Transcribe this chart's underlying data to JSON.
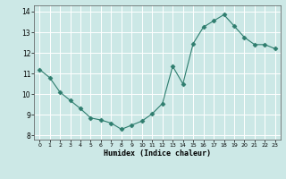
{
  "x": [
    0,
    1,
    2,
    3,
    4,
    5,
    6,
    7,
    8,
    9,
    10,
    11,
    12,
    13,
    14,
    15,
    16,
    17,
    18,
    19,
    20,
    21,
    22,
    23
  ],
  "y": [
    11.2,
    10.8,
    10.1,
    9.7,
    9.3,
    8.85,
    8.75,
    8.6,
    8.3,
    8.5,
    8.7,
    9.05,
    9.55,
    11.35,
    10.5,
    12.45,
    13.25,
    13.55,
    13.85,
    13.3,
    12.75,
    12.4,
    12.4,
    12.2
  ],
  "line_color": "#2e7d6e",
  "marker": "D",
  "marker_size": 2.5,
  "bg_color": "#cce8e6",
  "grid_color": "#ffffff",
  "xlabel": "Humidex (Indice chaleur)",
  "ylim": [
    7.8,
    14.3
  ],
  "xlim": [
    -0.5,
    23.5
  ],
  "yticks": [
    8,
    9,
    10,
    11,
    12,
    13,
    14
  ],
  "xticks": [
    0,
    1,
    2,
    3,
    4,
    5,
    6,
    7,
    8,
    9,
    10,
    11,
    12,
    13,
    14,
    15,
    16,
    17,
    18,
    19,
    20,
    21,
    22,
    23
  ]
}
